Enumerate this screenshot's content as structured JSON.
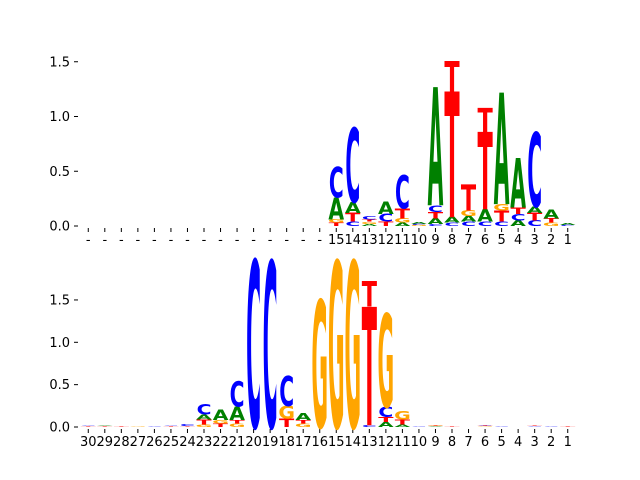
{
  "colors": {
    "A": "#008000",
    "C": "#0000ff",
    "G": "#ffa500",
    "T": "#ff0000",
    "axis": "#000000"
  },
  "chart_data": [
    {
      "type": "sequence-logo",
      "title": "",
      "xlabel": "",
      "ylabel": "",
      "ylim": [
        0,
        1.6
      ],
      "yticks": [
        "0.0",
        "0.5",
        "1.0",
        "1.5"
      ],
      "ytick_values": [
        0,
        0.5,
        1.0,
        1.5
      ],
      "xticks": [
        "-",
        "-",
        "-",
        "-",
        "-",
        "-",
        "-",
        "-",
        "-",
        "-",
        "-",
        "-",
        "-",
        "-",
        "-",
        "15",
        "14",
        "13",
        "12",
        "11",
        "10",
        "9",
        "8",
        "7",
        "6",
        "5",
        "4",
        "3",
        "2",
        "1"
      ],
      "columns": [
        [],
        [],
        [],
        [],
        [],
        [],
        [],
        [],
        [],
        [],
        [],
        [],
        [],
        [],
        [],
        [
          [
            "T",
            0.03
          ],
          [
            "G",
            0.03
          ],
          [
            "A",
            0.2
          ],
          [
            "C",
            0.28
          ]
        ],
        [
          [
            "C",
            0.04
          ],
          [
            "T",
            0.08
          ],
          [
            "A",
            0.1
          ],
          [
            "C",
            0.68
          ]
        ],
        [
          [
            "A",
            0.02
          ],
          [
            "G",
            0.02
          ],
          [
            "T",
            0.02
          ],
          [
            "C",
            0.03
          ]
        ],
        [
          [
            "T",
            0.04
          ],
          [
            "C",
            0.07
          ],
          [
            "A",
            0.11
          ]
        ],
        [
          [
            "A",
            0.03
          ],
          [
            "G",
            0.04
          ],
          [
            "T",
            0.09
          ],
          [
            "C",
            0.3
          ]
        ],
        [
          [
            "G",
            0.01
          ],
          [
            "C",
            0.01
          ],
          [
            "A",
            0.02
          ]
        ],
        [
          [
            "C",
            0.02
          ],
          [
            "A",
            0.05
          ],
          [
            "T",
            0.06
          ],
          [
            "C",
            0.06
          ],
          [
            "A",
            1.08
          ]
        ],
        [
          [
            "C",
            0.03
          ],
          [
            "A",
            0.05
          ],
          [
            "T",
            1.15
          ],
          [
            "T",
            0.28
          ]
        ],
        [
          [
            "C",
            0.04
          ],
          [
            "A",
            0.05
          ],
          [
            "G",
            0.05
          ],
          [
            "T",
            0.24
          ]
        ],
        [
          [
            "C",
            0.04
          ],
          [
            "A",
            0.11
          ],
          [
            "T",
            0.71
          ],
          [
            "T",
            0.22
          ]
        ],
        [
          [
            "C",
            0.04
          ],
          [
            "T",
            0.1
          ],
          [
            "G",
            0.06
          ],
          [
            "A",
            1.02
          ]
        ],
        [
          [
            "A",
            0.05
          ],
          [
            "C",
            0.06
          ],
          [
            "T",
            0.06
          ],
          [
            "A",
            0.45
          ]
        ],
        [
          [
            "C",
            0.05
          ],
          [
            "T",
            0.07
          ],
          [
            "A",
            0.06
          ],
          [
            "C",
            0.68
          ]
        ],
        [
          [
            "G",
            0.03
          ],
          [
            "T",
            0.04
          ],
          [
            "A",
            0.08
          ]
        ],
        [
          [
            "C",
            0.01
          ],
          [
            "A",
            0.02
          ]
        ]
      ]
    },
    {
      "type": "sequence-logo",
      "title": "",
      "xlabel": "",
      "ylabel": "",
      "ylim": [
        0,
        2.0
      ],
      "yticks": [
        "0.0",
        "0.5",
        "1.0",
        "1.5"
      ],
      "ytick_values": [
        0,
        0.5,
        1.0,
        1.5
      ],
      "xticks": [
        "30",
        "29",
        "28",
        "27",
        "26",
        "25",
        "24",
        "23",
        "22",
        "21",
        "20",
        "19",
        "18",
        "17",
        "16",
        "15",
        "14",
        "13",
        "12",
        "11",
        "10",
        "9",
        "8",
        "7",
        "6",
        "5",
        "4",
        "3",
        "2",
        "1"
      ],
      "columns": [
        [
          [
            "T",
            0.01
          ],
          [
            "C",
            0.01
          ]
        ],
        [
          [
            "T",
            0.01
          ],
          [
            "A",
            0.01
          ]
        ],
        [
          [
            "T",
            0.01
          ]
        ],
        [
          [
            "G",
            0.01
          ]
        ],
        [
          [
            "C",
            0.01
          ]
        ],
        [
          [
            "T",
            0.01
          ],
          [
            "C",
            0.01
          ]
        ],
        [
          [
            "T",
            0.01
          ],
          [
            "C",
            0.02
          ]
        ],
        [
          [
            "G",
            0.03
          ],
          [
            "T",
            0.06
          ],
          [
            "A",
            0.06
          ],
          [
            "C",
            0.12
          ]
        ],
        [
          [
            "T",
            0.04
          ],
          [
            "G",
            0.04
          ],
          [
            "A",
            0.12
          ]
        ],
        [
          [
            "G",
            0.04
          ],
          [
            "T",
            0.04
          ],
          [
            "A",
            0.16
          ],
          [
            "C",
            0.3
          ]
        ],
        [
          [
            "C",
            1.97
          ]
        ],
        [
          [
            "C",
            1.96
          ]
        ],
        [
          [
            "T",
            0.1
          ],
          [
            "G",
            0.15
          ],
          [
            "C",
            0.35
          ]
        ],
        [
          [
            "G",
            0.04
          ],
          [
            "T",
            0.04
          ],
          [
            "A",
            0.08
          ]
        ],
        [
          [
            "G",
            1.5
          ]
        ],
        [
          [
            "G",
            1.96
          ]
        ],
        [
          [
            "G",
            1.96
          ]
        ],
        [
          [
            "C",
            0.02
          ],
          [
            "T",
            1.4
          ],
          [
            "T",
            0.3
          ]
        ],
        [
          [
            "A",
            0.06
          ],
          [
            "T",
            0.06
          ],
          [
            "C",
            0.12
          ],
          [
            "G",
            1.1
          ]
        ],
        [
          [
            "A",
            0.03
          ],
          [
            "T",
            0.06
          ],
          [
            "G",
            0.1
          ]
        ],
        [
          [
            "C",
            0.01
          ]
        ],
        [
          [
            "A",
            0.01
          ],
          [
            "T",
            0.01
          ],
          [
            "G",
            0.01
          ]
        ],
        [
          [
            "T",
            0.01
          ]
        ],
        [],
        [
          [
            "G",
            0.01
          ],
          [
            "T",
            0.01
          ],
          [
            "C",
            0.01
          ]
        ],
        [
          [
            "C",
            0.01
          ]
        ],
        [],
        [
          [
            "C",
            0.01
          ],
          [
            "T",
            0.01
          ]
        ],
        [
          [
            "C",
            0.01
          ]
        ],
        [
          [
            "T",
            0.01
          ]
        ]
      ]
    }
  ]
}
